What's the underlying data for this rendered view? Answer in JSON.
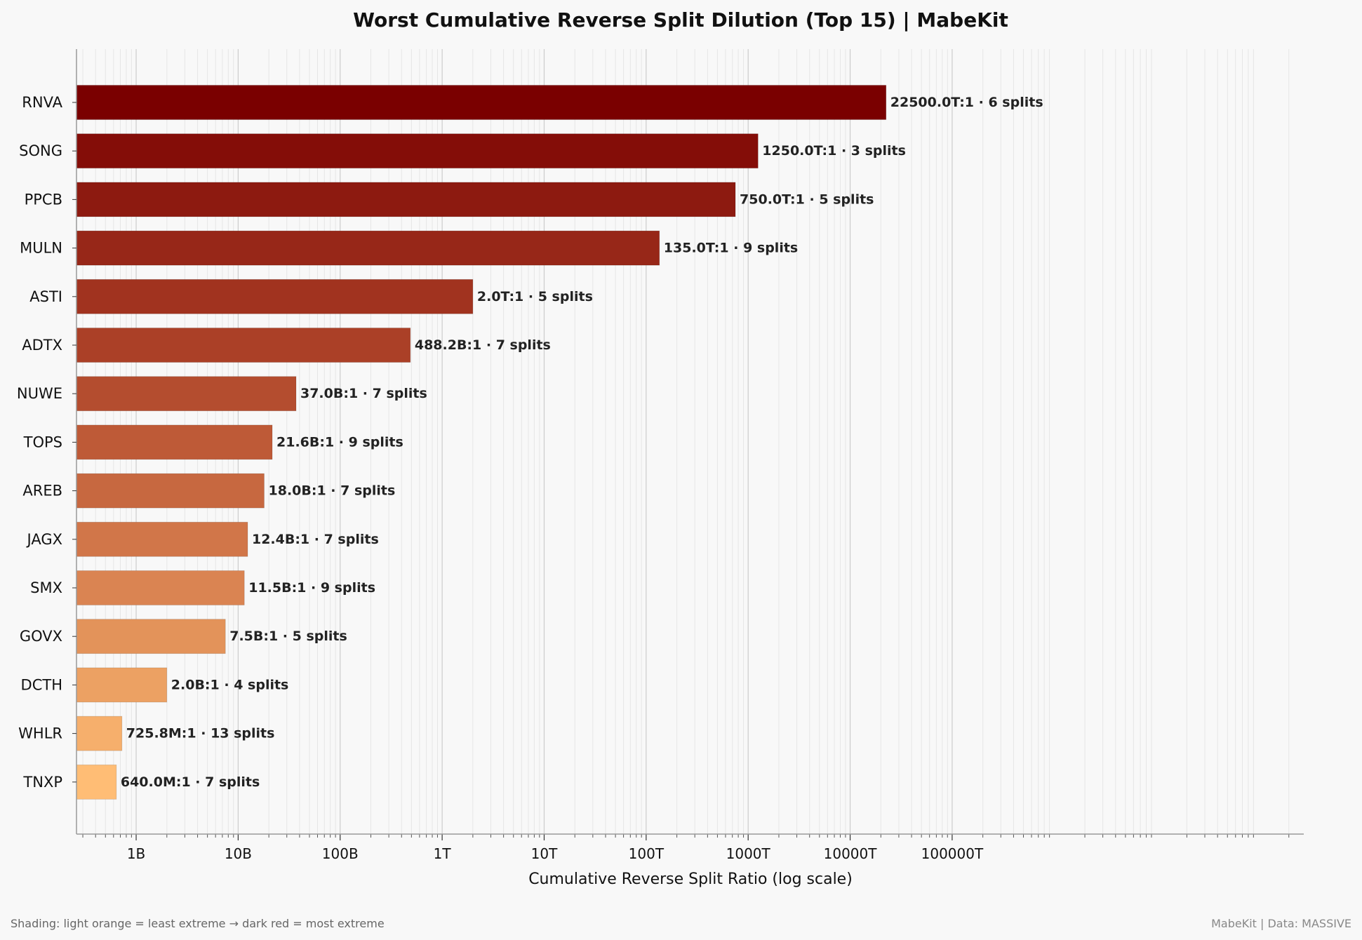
{
  "chart_data": {
    "type": "bar",
    "orientation": "horizontal",
    "title": "Worst Cumulative Reverse Split Dilution  (Top 15)  |  MabeKit",
    "xlabel": "Cumulative Reverse Split Ratio  (log scale)",
    "ylabel": "",
    "xscale": "log",
    "xlim": [
      260000000.0,
      2.8e+20
    ],
    "x_ticks": [
      {
        "value": 1000000000.0,
        "label": "1B"
      },
      {
        "value": 10000000000.0,
        "label": "10B"
      },
      {
        "value": 100000000000.0,
        "label": "100B"
      },
      {
        "value": 1000000000000.0,
        "label": "1T"
      },
      {
        "value": 10000000000000.0,
        "label": "10T"
      },
      {
        "value": 100000000000000.0,
        "label": "100T"
      },
      {
        "value": 1000000000000000.0,
        "label": "1000T"
      },
      {
        "value": 1e+16,
        "label": "10000T"
      },
      {
        "value": 1e+17,
        "label": "100000T"
      }
    ],
    "grid": true,
    "colors": {
      "most_extreme": "#7a0000",
      "least_extreme": "#ffbd75",
      "grid_major": "#cccccc",
      "grid_minor": "#e6e6e6",
      "axis": "#999999",
      "background": "#f8f8f8"
    },
    "bars": [
      {
        "ticker": "RNVA",
        "value": 2.25e+16,
        "label": "22500.0T:1  ·  6 splits"
      },
      {
        "ticker": "SONG",
        "value": 1250000000000000.0,
        "label": "1250.0T:1  ·  3 splits"
      },
      {
        "ticker": "PPCB",
        "value": 750000000000000.0,
        "label": "750.0T:1  ·  5 splits"
      },
      {
        "ticker": "MULN",
        "value": 135000000000000.0,
        "label": "135.0T:1  ·  9 splits"
      },
      {
        "ticker": "ASTI",
        "value": 2000000000000.0,
        "label": "2.0T:1  ·  5 splits"
      },
      {
        "ticker": "ADTX",
        "value": 488200000000.0,
        "label": "488.2B:1  ·  7 splits"
      },
      {
        "ticker": "NUWE",
        "value": 37000000000.0,
        "label": "37.0B:1  ·  7 splits"
      },
      {
        "ticker": "TOPS",
        "value": 21600000000.0,
        "label": "21.6B:1  ·  9 splits"
      },
      {
        "ticker": "AREB",
        "value": 18000000000.0,
        "label": "18.0B:1  ·  7 splits"
      },
      {
        "ticker": "JAGX",
        "value": 12400000000.0,
        "label": "12.4B:1  ·  7 splits"
      },
      {
        "ticker": "SMX",
        "value": 11500000000.0,
        "label": "11.5B:1  ·  9 splits"
      },
      {
        "ticker": "GOVX",
        "value": 7500000000.0,
        "label": "7.5B:1  ·  5 splits"
      },
      {
        "ticker": "DCTH",
        "value": 2000000000.0,
        "label": "2.0B:1  ·  4 splits"
      },
      {
        "ticker": "WHLR",
        "value": 725800000.0,
        "label": "725.8M:1  ·  13 splits"
      },
      {
        "ticker": "TNXP",
        "value": 640000000.0,
        "label": "640.0M:1  ·  7 splits"
      }
    ]
  },
  "footer": {
    "left": "Shading: light orange = least extreme   →   dark red = most extreme",
    "right": "MabeKit  |  Data: MASSIVE"
  }
}
